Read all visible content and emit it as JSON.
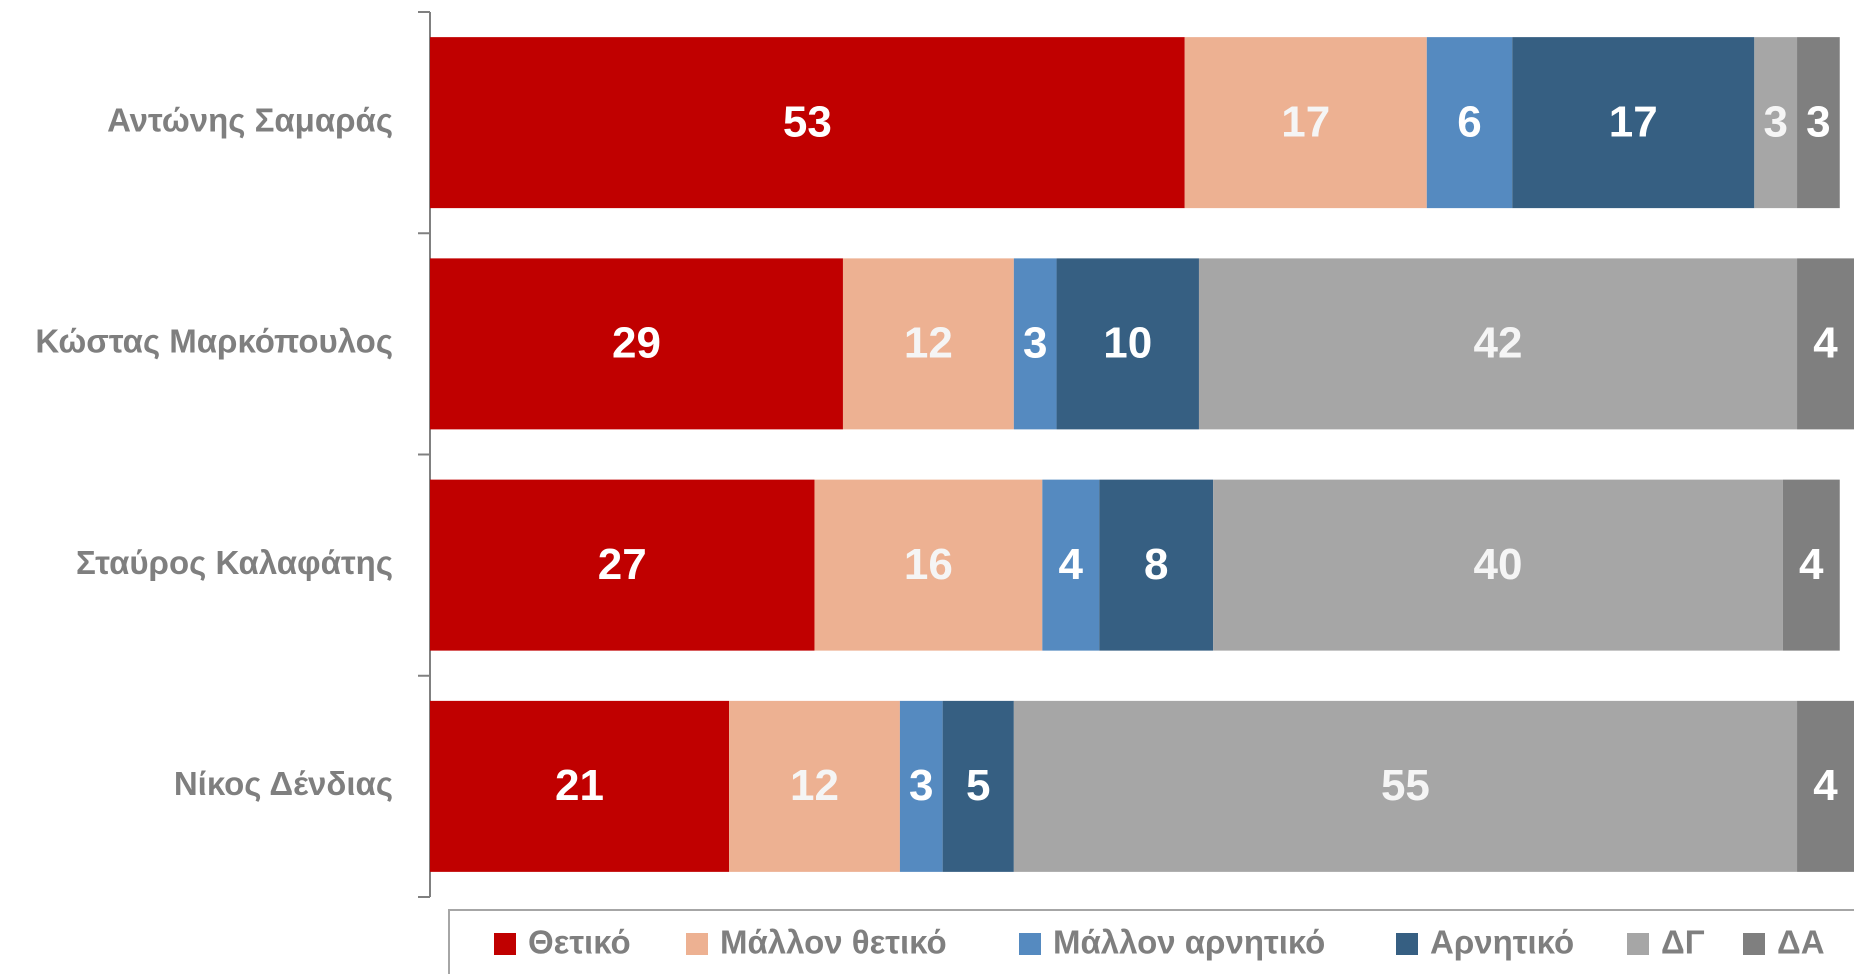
{
  "chart_data": {
    "type": "stacked_bar_horizontal",
    "categories": [
      "Αντώνης Σαμαράς",
      "Κώστας Μαρκόπουλος",
      "Σταύρος Καλαφάτης",
      "Νίκος Δένδιας"
    ],
    "series": [
      {
        "name": "Θετικό",
        "color": "#c00000",
        "values": [
          53,
          29,
          27,
          21
        ]
      },
      {
        "name": "Μάλλον θετικό",
        "color": "#edb192",
        "values": [
          17,
          12,
          16,
          12
        ]
      },
      {
        "name": "Μάλλον αρνητικό",
        "color": "#558ac0",
        "values": [
          6,
          3,
          4,
          3
        ]
      },
      {
        "name": "Αρνητικό",
        "color": "#365f82",
        "values": [
          17,
          10,
          8,
          5
        ]
      },
      {
        "name": "ΔΓ",
        "color": "#a6a6a6",
        "values": [
          3,
          42,
          40,
          55
        ]
      },
      {
        "name": "ΔΑ",
        "color": "#7f7f7f",
        "values": [
          3,
          4,
          4,
          4
        ]
      }
    ],
    "xlim": [
      0,
      100
    ],
    "legend": "bottom"
  }
}
